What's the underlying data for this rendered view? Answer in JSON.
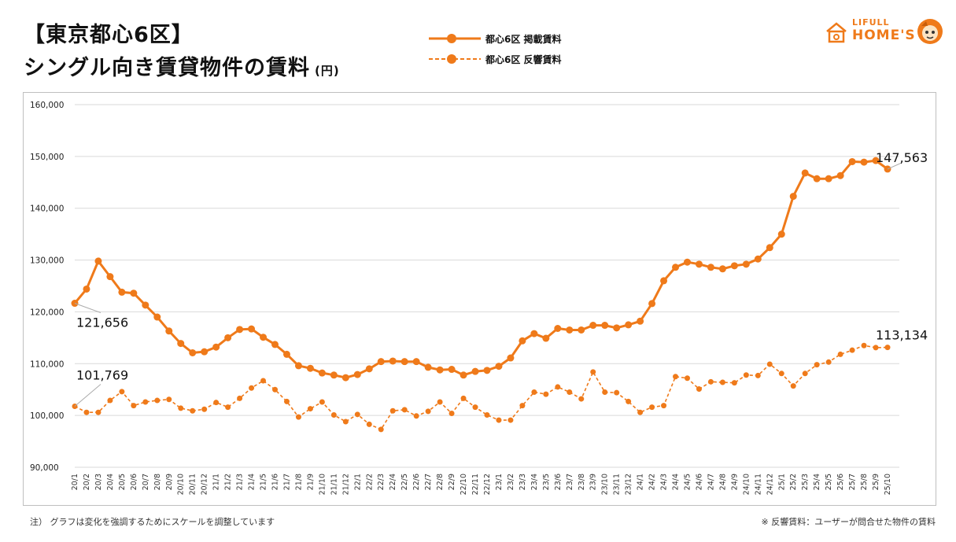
{
  "header": {
    "title_line1": "【東京都心6区】",
    "title_line2": "シングル向き賃貸物件の賃料",
    "unit": "(円)"
  },
  "legend": {
    "listing": "都心6区 掲載賃料",
    "inquiry": "都心6区 反響賃料"
  },
  "logo": {
    "small": "LIFULL",
    "big": "HOME'S"
  },
  "notes": {
    "left": "注） グラフは変化を強調するためにスケールを調整しています",
    "right": "※ 反響賃料：ユーザーが問合せた物件の賃料"
  },
  "colors": {
    "series": "#ef7a1a",
    "grid": "#d9d9d9",
    "border": "#bfbfbf"
  },
  "chart_data": {
    "type": "line",
    "ylim": [
      90000,
      160000
    ],
    "yticks": [
      "90,000",
      "100,000",
      "110,000",
      "120,000",
      "130,000",
      "140,000",
      "150,000",
      "160,000"
    ],
    "grid": true,
    "legend_position": "top-center",
    "x": [
      "20/1",
      "20/2",
      "20/3",
      "20/4",
      "20/5",
      "20/6",
      "20/7",
      "20/8",
      "20/9",
      "20/10",
      "20/11",
      "20/12",
      "21/1",
      "21/2",
      "21/3",
      "21/4",
      "21/5",
      "21/6",
      "21/7",
      "21/8",
      "21/9",
      "21/10",
      "21/11",
      "21/12",
      "22/1",
      "22/2",
      "22/3",
      "22/4",
      "22/5",
      "22/6",
      "22/7",
      "22/8",
      "22/9",
      "22/10",
      "22/11",
      "22/12",
      "23/1",
      "23/2",
      "23/3",
      "23/4",
      "23/5",
      "23/6",
      "23/7",
      "23/8",
      "23/9",
      "23/10",
      "23/11",
      "23/12",
      "24/1",
      "24/2",
      "24/3",
      "24/4",
      "24/5",
      "24/6",
      "24/7",
      "24/8",
      "24/9",
      "24/10",
      "24/11",
      "24/12",
      "25/1",
      "25/2",
      "25/3",
      "25/4",
      "25/5",
      "25/6",
      "25/7",
      "25/8",
      "25/9",
      "25/10"
    ],
    "series": [
      {
        "name": "都心6区 掲載賃料",
        "style": "solid",
        "values": [
          121656,
          124400,
          129800,
          126800,
          123800,
          123600,
          121300,
          119000,
          116300,
          113900,
          112100,
          112300,
          113200,
          115000,
          116600,
          116700,
          115100,
          113700,
          111800,
          109600,
          109100,
          108200,
          107800,
          107300,
          107900,
          109000,
          110400,
          110500,
          110400,
          110400,
          109300,
          108800,
          108900,
          107800,
          108500,
          108700,
          109500,
          111100,
          114400,
          115800,
          114900,
          116800,
          116500,
          116500,
          117400,
          117400,
          116900,
          117500,
          118200,
          121600,
          126000,
          128600,
          129600,
          129200,
          128600,
          128300,
          128900,
          129200,
          130200,
          132400,
          135000,
          142300,
          146800,
          145700,
          145700,
          146300,
          149000,
          148900,
          149200,
          147563
        ],
        "start_label": "121,656",
        "end_label": "147,563"
      },
      {
        "name": "都心6区 反響賃料",
        "style": "dashed",
        "values": [
          101769,
          100600,
          100600,
          102900,
          104600,
          101900,
          102600,
          102900,
          103100,
          101400,
          100900,
          101200,
          102500,
          101600,
          103300,
          105300,
          106700,
          105000,
          102700,
          99700,
          101300,
          102600,
          100100,
          98800,
          100200,
          98300,
          97300,
          100900,
          101100,
          99900,
          100800,
          102600,
          100400,
          103300,
          101600,
          100100,
          99100,
          99100,
          101900,
          104500,
          104100,
          105500,
          104500,
          103200,
          108400,
          104500,
          104400,
          102700,
          100600,
          101600,
          101900,
          107500,
          107200,
          105100,
          106500,
          106400,
          106300,
          107800,
          107700,
          109900,
          108100,
          105700,
          108100,
          109800,
          110300,
          111800,
          112600,
          113500,
          113100,
          113134
        ],
        "start_label": "101,769",
        "end_label": "113,134"
      }
    ]
  }
}
